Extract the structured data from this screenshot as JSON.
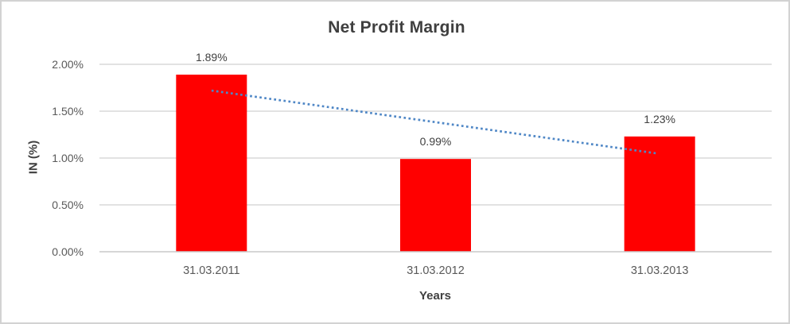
{
  "chart_data": {
    "type": "bar",
    "title": "Net Profit Margin",
    "xlabel": "Years",
    "ylabel": "IN (%)",
    "categories": [
      "31.03.2011",
      "31.03.2012",
      "31.03.2013"
    ],
    "values": [
      1.89,
      0.99,
      1.23
    ],
    "data_labels": [
      "1.89%",
      "0.99%",
      "1.23%"
    ],
    "y_ticks": [
      {
        "label": "0.00%",
        "value": 0.0
      },
      {
        "label": "0.50%",
        "value": 0.5
      },
      {
        "label": "1.00%",
        "value": 1.0
      },
      {
        "label": "1.50%",
        "value": 1.5
      },
      {
        "label": "2.00%",
        "value": 2.0
      }
    ],
    "ylim": [
      0.0,
      2.0
    ],
    "grid": true,
    "legend": "none",
    "bar_color": "#ff0000",
    "trendline": {
      "type": "linear",
      "style": "dotted",
      "color": "#4f87c6",
      "start_value": 1.72,
      "end_value": 1.05
    },
    "colors": {
      "gridline": "#d9d9d9",
      "axis_line": "#c9c9c9",
      "tick_label": "#595959",
      "data_label": "#404040",
      "title": "#3f3f3f",
      "background": "#ffffff",
      "border": "#d2d2d2"
    }
  }
}
